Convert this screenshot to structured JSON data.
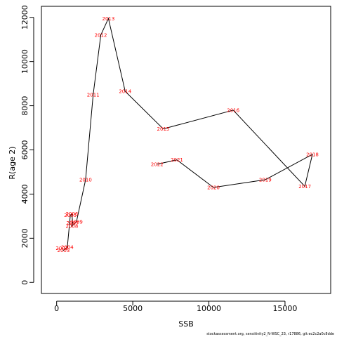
{
  "chart_data": {
    "type": "line",
    "title": "",
    "xlabel": "SSB",
    "ylabel": "R(age 2)",
    "xlim": [
      -1000,
      18000
    ],
    "ylim": [
      -500,
      12500
    ],
    "xticks": [
      0,
      5000,
      10000,
      15000
    ],
    "yticks": [
      0,
      2000,
      4000,
      6000,
      8000,
      10000,
      12000
    ],
    "grid": false,
    "line_color": "#000000",
    "label_color": "#ff0000",
    "points": [
      {
        "year": "2002",
        "x": 350,
        "y": 1550
      },
      {
        "year": "2003",
        "x": 450,
        "y": 1450
      },
      {
        "year": "2004",
        "x": 700,
        "y": 1600
      },
      {
        "year": "2005",
        "x": 900,
        "y": 3050
      },
      {
        "year": "2006",
        "x": 1000,
        "y": 3100
      },
      {
        "year": "2007",
        "x": 1050,
        "y": 2700
      },
      {
        "year": "2008",
        "x": 1000,
        "y": 2550
      },
      {
        "year": "2009",
        "x": 1300,
        "y": 2750
      },
      {
        "year": "2010",
        "x": 1900,
        "y": 4650
      },
      {
        "year": "2011",
        "x": 2400,
        "y": 8500
      },
      {
        "year": "2012",
        "x": 2900,
        "y": 11200
      },
      {
        "year": "2013",
        "x": 3400,
        "y": 11950
      },
      {
        "year": "2014",
        "x": 4500,
        "y": 8650
      },
      {
        "year": "2015",
        "x": 7000,
        "y": 6950
      },
      {
        "year": "2016",
        "x": 11600,
        "y": 7800
      },
      {
        "year": "2017",
        "x": 16300,
        "y": 4350
      },
      {
        "year": "2018",
        "x": 16800,
        "y": 5800
      },
      {
        "year": "2019",
        "x": 13700,
        "y": 4650
      },
      {
        "year": "2020",
        "x": 10300,
        "y": 4300
      },
      {
        "year": "2021",
        "x": 7900,
        "y": 5550
      },
      {
        "year": "2022",
        "x": 6600,
        "y": 5350
      }
    ]
  },
  "footer": "stockassessment.org, sensitivity2_N-WSC_23, r17886, git:ec2c2a0c8dde"
}
